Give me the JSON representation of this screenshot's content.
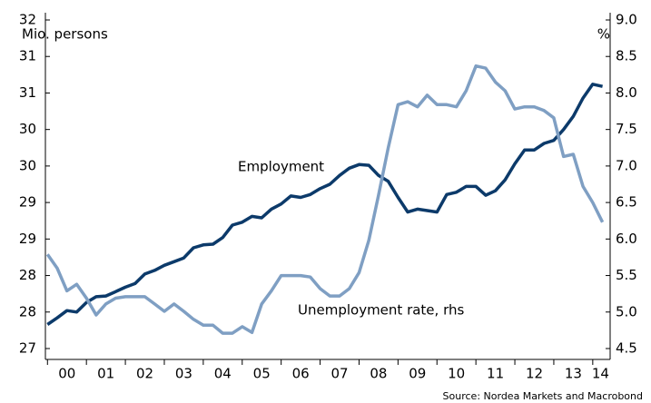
{
  "chart_data": {
    "type": "line",
    "ylabel": "Mio. persons",
    "y2label": "%",
    "source": "Source: Nordea Markets and Macrobond",
    "annotations": [
      "Employment",
      "Unemployment rate, rhs"
    ],
    "x": [
      0,
      0.25,
      0.5,
      0.75,
      1,
      1.25,
      1.5,
      1.75,
      2,
      2.25,
      2.5,
      2.75,
      3,
      3.25,
      3.5,
      3.75,
      4,
      4.25,
      4.5,
      4.75,
      5,
      5.25,
      5.5,
      5.75,
      6,
      6.25,
      6.5,
      6.75,
      7,
      7.25,
      7.5,
      7.75,
      8,
      8.25,
      8.5,
      8.75,
      9,
      9.25,
      9.5,
      9.75,
      10,
      10.25,
      10.5,
      10.75,
      11,
      11.25,
      11.5,
      11.75,
      12,
      12.25,
      12.5,
      12.75,
      13,
      13.25,
      13.5,
      13.75,
      14,
      14.25
    ],
    "xlim": [
      -0.03,
      14.4
    ],
    "xticks": [
      {
        "value": 0.5,
        "label": "00"
      },
      {
        "value": 1.5,
        "label": "01"
      },
      {
        "value": 2.5,
        "label": "02"
      },
      {
        "value": 3.5,
        "label": "03"
      },
      {
        "value": 4.5,
        "label": "04"
      },
      {
        "value": 5.5,
        "label": "05"
      },
      {
        "value": 6.5,
        "label": "06"
      },
      {
        "value": 7.5,
        "label": "07"
      },
      {
        "value": 8.5,
        "label": "08"
      },
      {
        "value": 9.5,
        "label": "09"
      },
      {
        "value": 10.5,
        "label": "10"
      },
      {
        "value": 11.5,
        "label": "11"
      },
      {
        "value": 12.5,
        "label": "12"
      },
      {
        "value": 13.5,
        "label": "13"
      },
      {
        "value": 14.2,
        "label": "14"
      }
    ],
    "ylim": [
      27.5,
      32
    ],
    "yticks": [
      {
        "value": 27.5,
        "label": "27"
      },
      28,
      {
        "value": 28.5,
        "label": "28"
      },
      29,
      {
        "value": 29.5,
        "label": "29"
      },
      30,
      {
        "value": 30.5,
        "label": "30"
      },
      31,
      {
        "value": 31.5,
        "label": "31"
      },
      32
    ],
    "y2lim": [
      4.5,
      9
    ],
    "y2ticks": [
      8.5,
      {
        "value": 9,
        "label": "9.0"
      },
      {
        "value": 8,
        "label": "8.0"
      },
      7.5,
      {
        "value": 7,
        "label": "7.0"
      },
      6.5,
      {
        "value": 6,
        "label": "6.0"
      },
      5.5,
      {
        "value": 5,
        "label": "5.0"
      },
      4.5
    ],
    "series": [
      {
        "name": "Employment",
        "color": "#0c3a6a",
        "values": [
          27.83,
          27.92,
          28.02,
          28.0,
          28.13,
          28.21,
          28.22,
          28.28,
          28.34,
          28.39,
          28.52,
          28.57,
          28.64,
          28.69,
          28.74,
          28.88,
          28.92,
          28.93,
          29.02,
          29.19,
          29.23,
          29.31,
          29.29,
          29.41,
          29.48,
          29.59,
          29.57,
          29.61,
          29.69,
          29.75,
          29.87,
          29.97,
          30.02,
          30.01,
          29.87,
          29.79,
          29.57,
          29.37,
          29.41,
          29.39,
          29.37,
          29.61,
          29.64,
          29.72,
          29.72,
          29.6,
          29.66,
          29.81,
          30.03,
          30.22,
          30.22,
          30.31,
          30.35,
          30.5,
          30.68,
          30.93,
          31.12,
          31.09
        ]
      },
      {
        "name": "Unemployment rate, rhs",
        "color": "#7f9fc3",
        "axis": "y2",
        "values": [
          5.79,
          5.6,
          5.29,
          5.38,
          5.19,
          4.96,
          5.11,
          5.19,
          5.21,
          5.21,
          5.21,
          5.11,
          5.01,
          5.11,
          5.01,
          4.9,
          4.82,
          4.82,
          4.71,
          4.71,
          4.8,
          4.72,
          5.11,
          5.29,
          5.5,
          5.5,
          5.5,
          5.48,
          5.32,
          5.22,
          5.22,
          5.32,
          5.54,
          5.98,
          6.6,
          7.25,
          7.84,
          7.88,
          7.81,
          7.97,
          7.84,
          7.84,
          7.81,
          8.03,
          8.37,
          8.34,
          8.15,
          8.03,
          7.78,
          7.81,
          7.81,
          7.76,
          7.66,
          7.13,
          7.16,
          6.72,
          6.5,
          6.23
        ]
      }
    ]
  }
}
